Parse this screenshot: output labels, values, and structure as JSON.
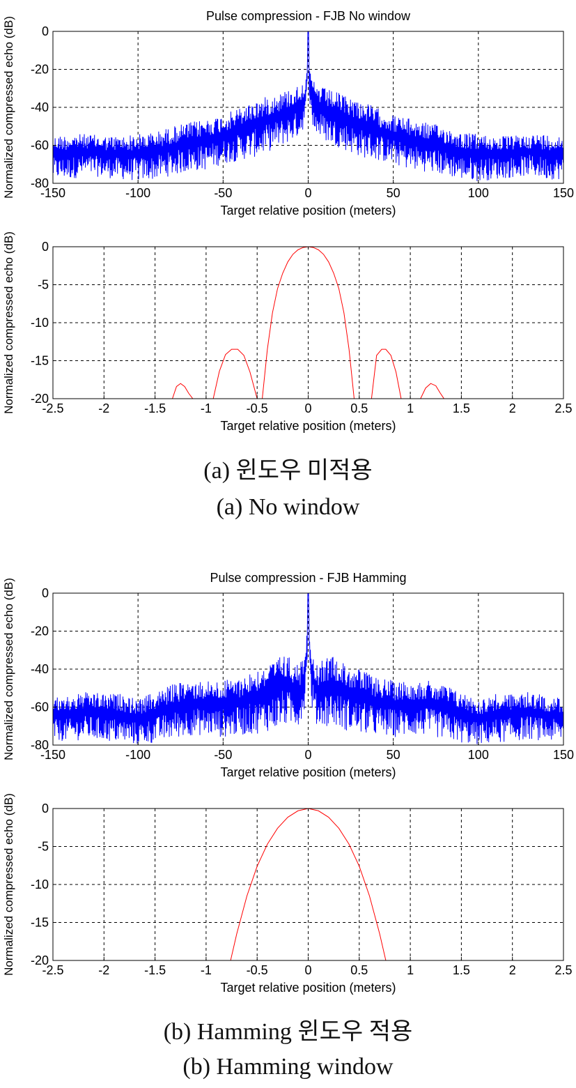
{
  "panel_a": {
    "caption_ko": "(a) 윈도우 미적용",
    "caption_en": "(a) No window"
  },
  "panel_b": {
    "caption_ko": "(b) Hamming 윈도우 적용",
    "caption_en": "(b) Hamming window"
  },
  "chart_data": [
    {
      "type": "line",
      "title": "Pulse compression - FJB  No window",
      "xlabel": "Target relative position (meters)",
      "ylabel": "Normalized compressed echo (dB)",
      "xlim": [
        -150,
        150
      ],
      "ylim": [
        -80,
        0
      ],
      "xticks": [
        -150,
        -100,
        -50,
        0,
        50,
        100,
        150
      ],
      "yticks": [
        0,
        -20,
        -40,
        -60,
        -80
      ],
      "grid": true,
      "color": "#0000ff",
      "series": [
        {
          "x": [
            -150,
            -140,
            -130,
            -120,
            -110,
            -100,
            -90,
            -80,
            -70,
            -60,
            -50,
            -40,
            -30,
            -20,
            -10,
            -5,
            -2,
            -1,
            0,
            1,
            2,
            5,
            10,
            20,
            30,
            40,
            50,
            60,
            70,
            80,
            90,
            100,
            110,
            120,
            130,
            140,
            150
          ],
          "y": [
            -62,
            -60,
            -61,
            -62,
            -63,
            -62,
            -61,
            -58,
            -56,
            -55,
            -52,
            -48,
            -45,
            -40,
            -36,
            -32,
            -28,
            -22,
            0,
            -22,
            -28,
            -32,
            -36,
            -40,
            -45,
            -48,
            -52,
            -55,
            -56,
            -58,
            -61,
            -62,
            -63,
            -62,
            -61,
            -60,
            -62
          ],
          "noise_low": [
            -78,
            -78,
            -76,
            -77,
            -78,
            -79,
            -78,
            -76,
            -74,
            -73,
            -70,
            -68,
            -66,
            -62,
            -58,
            -55,
            -50,
            -40,
            -24,
            -40,
            -50,
            -55,
            -58,
            -62,
            -66,
            -68,
            -70,
            -73,
            -74,
            -76,
            -78,
            -79,
            -78,
            -77,
            -76,
            -78,
            -78
          ],
          "noise_high": [
            -55,
            -54,
            -54,
            -55,
            -55,
            -54,
            -53,
            -50,
            -48,
            -46,
            -44,
            -40,
            -36,
            -33,
            -30,
            -28,
            -25,
            -20,
            0,
            -20,
            -25,
            -28,
            -30,
            -33,
            -36,
            -40,
            -44,
            -46,
            -48,
            -50,
            -53,
            -54,
            -55,
            -55,
            -54,
            -54,
            -55
          ]
        }
      ]
    },
    {
      "type": "line",
      "title": "",
      "xlabel": "Target relative position (meters)",
      "ylabel": "Normalized compressed echo (dB)",
      "xlim": [
        -2.5,
        2.5
      ],
      "ylim": [
        -20,
        0
      ],
      "xticks": [
        -2.5,
        -2,
        -1.5,
        -1,
        -0.5,
        0,
        0.5,
        1,
        1.5,
        2,
        2.5
      ],
      "yticks": [
        0,
        -5,
        -10,
        -15,
        -20
      ],
      "grid": true,
      "color": "#ff0000",
      "series": [
        {
          "x": [
            -1.33,
            -1.29,
            -1.25,
            -1.21,
            -1.17,
            -1.13
          ],
          "y": [
            -20,
            -18.4,
            -18.0,
            -18.4,
            -19.3,
            -20
          ]
        },
        {
          "x": [
            -0.93,
            -0.87,
            -0.81,
            -0.75,
            -0.69,
            -0.63,
            -0.57,
            -0.5
          ],
          "y": [
            -20,
            -16.4,
            -14.2,
            -13.5,
            -13.5,
            -14.3,
            -16.5,
            -20
          ]
        },
        {
          "x": [
            -0.45,
            -0.4,
            -0.35,
            -0.3,
            -0.25,
            -0.2,
            -0.15,
            -0.1,
            -0.05,
            0,
            0.05,
            0.1,
            0.15,
            0.2,
            0.25,
            0.3,
            0.35,
            0.4,
            0.45
          ],
          "y": [
            -20,
            -13.5,
            -8.7,
            -5.5,
            -3.5,
            -2.0,
            -1.0,
            -0.4,
            -0.1,
            0,
            -0.1,
            -0.4,
            -1.0,
            -2.0,
            -3.5,
            -5.5,
            -8.7,
            -13.5,
            -20
          ]
        },
        {
          "x": [
            0.62,
            0.67,
            0.72,
            0.76,
            0.81,
            0.86,
            0.91
          ],
          "y": [
            -20,
            -14.3,
            -13.5,
            -13.5,
            -14.3,
            -16.5,
            -20
          ]
        },
        {
          "x": [
            1.1,
            1.15,
            1.2,
            1.25,
            1.29,
            1.33
          ],
          "y": [
            -20,
            -18.6,
            -18.0,
            -18.3,
            -19.2,
            -20
          ]
        }
      ]
    },
    {
      "type": "line",
      "title": "Pulse compression - FJB  Hamming",
      "xlabel": "Target relative position (meters)",
      "ylabel": "Normalized compressed echo (dB)",
      "xlim": [
        -150,
        150
      ],
      "ylim": [
        -80,
        0
      ],
      "xticks": [
        -150,
        -100,
        -50,
        0,
        50,
        100,
        150
      ],
      "yticks": [
        0,
        -20,
        -40,
        -60,
        -80
      ],
      "grid": true,
      "color": "#0000ff",
      "series": [
        {
          "x": [
            -150,
            -140,
            -130,
            -120,
            -110,
            -100,
            -90,
            -80,
            -70,
            -60,
            -50,
            -40,
            -30,
            -20,
            -15,
            -10,
            -5,
            -2,
            -1,
            0,
            1,
            2,
            5,
            10,
            15,
            20,
            30,
            40,
            50,
            60,
            70,
            80,
            90,
            100,
            110,
            120,
            130,
            140,
            150
          ],
          "y": [
            -66,
            -65,
            -64,
            -63,
            -64,
            -66,
            -64,
            -60,
            -58,
            -58,
            -58,
            -57,
            -54,
            -50,
            -48,
            -50,
            -52,
            -40,
            -30,
            0,
            -30,
            -40,
            -52,
            -50,
            -48,
            -50,
            -54,
            -57,
            -58,
            -58,
            -58,
            -60,
            -64,
            -66,
            -64,
            -63,
            -64,
            -65,
            -66
          ],
          "noise_low": [
            -78,
            -78,
            -77,
            -78,
            -79,
            -80,
            -79,
            -77,
            -75,
            -75,
            -76,
            -75,
            -74,
            -72,
            -70,
            -70,
            -70,
            -60,
            -45,
            -20,
            -45,
            -60,
            -70,
            -70,
            -70,
            -72,
            -74,
            -75,
            -76,
            -75,
            -75,
            -77,
            -79,
            -80,
            -79,
            -78,
            -77,
            -78,
            -78
          ],
          "noise_high": [
            -55,
            -54,
            -52,
            -53,
            -53,
            -56,
            -52,
            -48,
            -46,
            -46,
            -46,
            -44,
            -40,
            -36,
            -32,
            -34,
            -38,
            -30,
            -20,
            0,
            -20,
            -30,
            -38,
            -34,
            -32,
            -36,
            -40,
            -44,
            -46,
            -46,
            -46,
            -48,
            -52,
            -56,
            -53,
            -53,
            -52,
            -54,
            -55
          ]
        }
      ]
    },
    {
      "type": "line",
      "title": "",
      "xlabel": "Target relative position (meters)",
      "ylabel": "Normalized compressed echo (dB)",
      "xlim": [
        -2.5,
        2.5
      ],
      "ylim": [
        -20,
        0
      ],
      "xticks": [
        -2.5,
        -2,
        -1.5,
        -1,
        -0.5,
        0,
        0.5,
        1,
        1.5,
        2,
        2.5
      ],
      "yticks": [
        0,
        -5,
        -10,
        -15,
        -20
      ],
      "grid": true,
      "color": "#ff0000",
      "series": [
        {
          "x": [
            -0.76,
            -0.7,
            -0.6,
            -0.5,
            -0.4,
            -0.3,
            -0.2,
            -0.1,
            0,
            0.1,
            0.2,
            0.3,
            0.4,
            0.5,
            0.6,
            0.7,
            0.76
          ],
          "y": [
            -20,
            -16.5,
            -11.5,
            -7.6,
            -4.7,
            -2.6,
            -1.15,
            -0.3,
            0,
            -0.3,
            -1.15,
            -2.6,
            -4.7,
            -7.6,
            -11.5,
            -16.5,
            -20
          ]
        }
      ]
    }
  ]
}
